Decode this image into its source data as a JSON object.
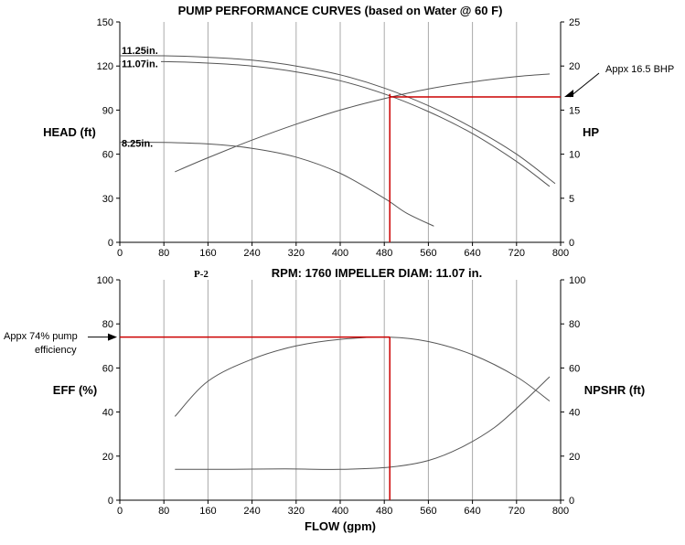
{
  "chart_data": [
    {
      "type": "line",
      "title": "PUMP PERFORMANCE CURVES (based on Water @ 60 F)",
      "xlim": [
        0,
        800
      ],
      "xticks": [
        0,
        80,
        160,
        240,
        320,
        400,
        480,
        560,
        640,
        720,
        800
      ],
      "ylabel": "HEAD (ft)",
      "ylim": [
        0,
        150
      ],
      "yticks": [
        0,
        30,
        60,
        90,
        120,
        150
      ],
      "y2label": "HP",
      "y2lim": [
        0,
        25
      ],
      "y2ticks": [
        0,
        5,
        10,
        15,
        20,
        25
      ],
      "grid": "vertical",
      "series": [
        {
          "name": "11.07in.",
          "axis": "left",
          "label_text": "11.07in.",
          "x": [
            0,
            80,
            160,
            240,
            320,
            400,
            480,
            560,
            640,
            720,
            780
          ],
          "y": [
            123,
            123,
            122,
            120,
            116,
            110,
            101,
            89,
            74,
            55,
            38
          ]
        },
        {
          "name": "11.25in.",
          "axis": "left",
          "label_text": "11.25in.",
          "x": [
            0,
            80,
            160,
            240,
            320,
            400,
            480,
            560,
            640,
            720,
            790
          ],
          "y": [
            127,
            127,
            126,
            124,
            120,
            114,
            105,
            93,
            78,
            60,
            40
          ]
        },
        {
          "name": "8.25in.",
          "axis": "left",
          "label_text": "8.25in.",
          "x": [
            0,
            80,
            160,
            240,
            320,
            400,
            480,
            520,
            570
          ],
          "y": [
            68,
            68,
            67,
            64,
            58,
            47,
            30,
            20,
            11
          ]
        },
        {
          "name": "HP",
          "axis": "right",
          "x": [
            100,
            160,
            240,
            320,
            400,
            480,
            560,
            640,
            720,
            780
          ],
          "y": [
            8.0,
            9.6,
            11.6,
            13.4,
            15.0,
            16.3,
            17.4,
            18.2,
            18.8,
            19.1
          ]
        }
      ],
      "annotations": [
        {
          "text": "Appx 16.5 BHP",
          "x": 490,
          "y2": 16.5
        }
      ]
    },
    {
      "type": "line",
      "subtitle": "RPM: 1760  IMPELLER DIAM: 11.07 in.",
      "tag": "P-2",
      "xlabel": "FLOW (gpm)",
      "xlim": [
        0,
        800
      ],
      "xticks": [
        0,
        80,
        160,
        240,
        320,
        400,
        480,
        560,
        640,
        720,
        800
      ],
      "ylabel": "EFF (%)",
      "ylim": [
        0,
        100
      ],
      "yticks": [
        0,
        20,
        40,
        60,
        80,
        100
      ],
      "y2label": "NPSHR (ft)",
      "y2lim": [
        0,
        100
      ],
      "y2ticks": [
        0,
        20,
        40,
        60,
        80,
        100
      ],
      "grid": "vertical",
      "series": [
        {
          "name": "EFF",
          "axis": "left",
          "x": [
            100,
            160,
            240,
            320,
            400,
            490,
            560,
            640,
            720,
            780
          ],
          "y": [
            38,
            54,
            64,
            70,
            73,
            74,
            72,
            66,
            56,
            45
          ]
        },
        {
          "name": "NPSHR",
          "axis": "right",
          "x": [
            100,
            200,
            300,
            400,
            490,
            560,
            620,
            680,
            730,
            780
          ],
          "y": [
            14,
            14,
            14.2,
            14,
            15,
            18,
            24,
            33,
            44,
            56
          ]
        }
      ],
      "annotations": [
        {
          "text": "Appx 74% pump efficiency",
          "lines": [
            "Appx 74% pump",
            "efficiency"
          ],
          "x": 490,
          "y": 74
        }
      ]
    }
  ],
  "marker": {
    "flow_gpm": 490,
    "color": "#cc0000"
  },
  "colors": {
    "curve": "#555555",
    "grid": "#aaaaaa",
    "marker": "#cc0000"
  }
}
